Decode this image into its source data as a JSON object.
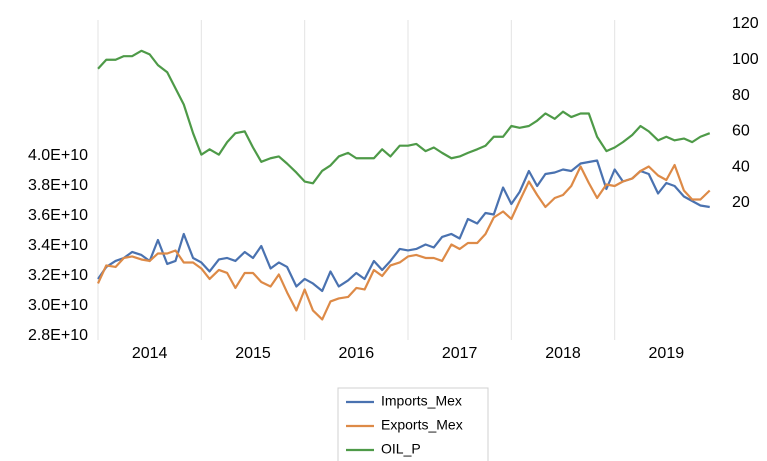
{
  "chart_data": {
    "type": "line",
    "x": [
      2014.0,
      2014.08,
      2014.17,
      2014.25,
      2014.33,
      2014.42,
      2014.5,
      2014.58,
      2014.67,
      2014.75,
      2014.83,
      2014.92,
      2015.0,
      2015.08,
      2015.17,
      2015.25,
      2015.33,
      2015.42,
      2015.5,
      2015.58,
      2015.67,
      2015.75,
      2015.83,
      2015.92,
      2016.0,
      2016.08,
      2016.17,
      2016.25,
      2016.33,
      2016.42,
      2016.5,
      2016.58,
      2016.67,
      2016.75,
      2016.83,
      2016.92,
      2017.0,
      2017.08,
      2017.17,
      2017.25,
      2017.33,
      2017.42,
      2017.5,
      2017.58,
      2017.67,
      2017.75,
      2017.83,
      2017.92,
      2018.0,
      2018.08,
      2018.17,
      2018.25,
      2018.33,
      2018.42,
      2018.5,
      2018.58,
      2018.67,
      2018.75,
      2018.83,
      2018.92,
      2019.0,
      2019.08,
      2019.17,
      2019.25,
      2019.33,
      2019.42,
      2019.5,
      2019.58,
      2019.67,
      2019.75,
      2019.83,
      2019.92
    ],
    "xlim": [
      2014,
      2020
    ],
    "xticks": [
      2014,
      2015,
      2016,
      2017,
      2018,
      2019
    ],
    "grid": "x",
    "ylim": [
      27730000000,
      49070000000
    ],
    "yticks": [
      {
        "value": 28000000000,
        "label": "2.8E+10"
      },
      {
        "value": 30000000000,
        "label": "3.0E+10"
      },
      {
        "value": 32000000000,
        "label": "3.2E+10"
      },
      {
        "value": 34000000000,
        "label": "3.4E+10"
      },
      {
        "value": 36000000000,
        "label": "3.6E+10"
      },
      {
        "value": 38000000000,
        "label": "3.8E+10"
      },
      {
        "value": 40000000000,
        "label": "4.0E+10"
      }
    ],
    "y2lim": [
      -56.5,
      122.2
    ],
    "y2ticks": [
      20,
      40,
      60,
      80,
      100,
      120
    ],
    "legend": "bottom",
    "series": [
      {
        "name": "Imports_Mex",
        "color": "#4a72b0",
        "values": [
          31800000000,
          32600000000,
          33000000000,
          33200000000,
          33600000000,
          33400000000,
          33000000000,
          34400000000,
          32800000000,
          33000000000,
          34800000000,
          33200000000,
          32900000000,
          32300000000,
          33100000000,
          33200000000,
          33000000000,
          33600000000,
          33200000000,
          34000000000,
          32500000000,
          32900000000,
          32600000000,
          31300000000,
          31800000000,
          31500000000,
          31000000000,
          32300000000,
          31300000000,
          31700000000,
          32200000000,
          31800000000,
          33000000000,
          32400000000,
          33000000000,
          33800000000,
          33700000000,
          33800000000,
          34100000000,
          33900000000,
          34600000000,
          34800000000,
          34500000000,
          35800000000,
          35500000000,
          36200000000,
          36100000000,
          37900000000,
          36800000000,
          37600000000,
          39000000000,
          38000000000,
          38800000000,
          38900000000,
          39100000000,
          39000000000,
          39500000000,
          39600000000,
          39700000000,
          37800000000,
          39100000000,
          38300000000,
          38500000000,
          39000000000,
          38800000000,
          37500000000,
          38200000000,
          38000000000,
          37300000000,
          37000000000,
          36700000000,
          36600000000
        ]
      },
      {
        "name": "Exports_Mex",
        "color": "#dd8a47",
        "values": [
          31500000000,
          32700000000,
          32600000000,
          33200000000,
          33300000000,
          33100000000,
          33000000000,
          33500000000,
          33500000000,
          33700000000,
          32900000000,
          32900000000,
          32500000000,
          31800000000,
          32400000000,
          32200000000,
          31200000000,
          32200000000,
          32200000000,
          31600000000,
          31300000000,
          32100000000,
          30900000000,
          29700000000,
          31100000000,
          29700000000,
          29100000000,
          30300000000,
          30500000000,
          30600000000,
          31200000000,
          31100000000,
          32400000000,
          32000000000,
          32700000000,
          32900000000,
          33300000000,
          33400000000,
          33200000000,
          33200000000,
          33000000000,
          34100000000,
          33800000000,
          34200000000,
          34200000000,
          34800000000,
          35900000000,
          36300000000,
          35800000000,
          37000000000,
          38300000000,
          37400000000,
          36600000000,
          37200000000,
          37400000000,
          38000000000,
          39300000000,
          38200000000,
          37200000000,
          38100000000,
          38000000000,
          38300000000,
          38500000000,
          39000000000,
          39300000000,
          38700000000,
          38400000000,
          39400000000,
          37700000000,
          37100000000,
          37100000000,
          37700000000
        ]
      },
      {
        "name": "OIL_P",
        "color": "#4e9a48",
        "axis": "y2",
        "values": [
          95,
          100,
          100,
          102,
          102,
          105,
          103,
          97,
          93,
          84,
          75,
          59,
          47,
          50,
          47,
          54,
          59,
          60,
          51,
          43,
          45,
          46,
          42,
          37,
          32,
          31,
          38,
          41,
          46,
          48,
          45,
          45,
          45,
          50,
          46,
          52,
          52,
          53,
          49,
          51,
          48,
          45,
          46,
          48,
          50,
          52,
          57,
          57,
          63,
          62,
          63,
          66,
          70,
          67,
          71,
          68,
          70,
          70,
          57,
          49,
          51,
          54,
          58,
          63,
          60,
          55,
          57,
          55,
          56,
          54,
          57,
          59
        ]
      }
    ]
  }
}
